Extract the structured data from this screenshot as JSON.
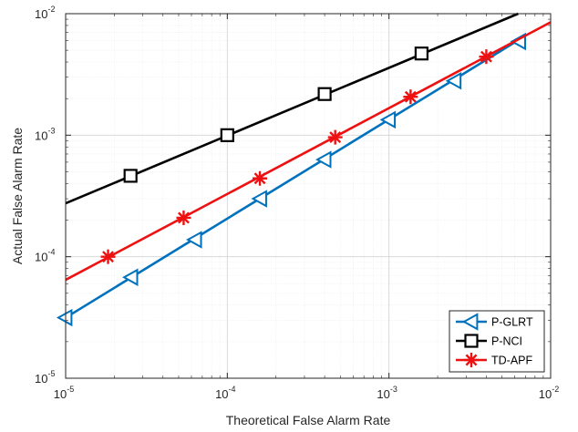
{
  "chart_data": {
    "type": "line",
    "xlabel": "Theoretical False Alarm Rate",
    "ylabel": "Actual False Alarm Rate",
    "xscale": "log",
    "yscale": "log",
    "xlim": [
      1e-05,
      0.01
    ],
    "ylim": [
      1e-05,
      0.01
    ],
    "grid": "major and minor",
    "legend_position": "bottom-right",
    "x_ticks": [
      {
        "base": "10",
        "exp": "-5",
        "value": 1e-05
      },
      {
        "base": "10",
        "exp": "-4",
        "value": 0.0001
      },
      {
        "base": "10",
        "exp": "-3",
        "value": 0.001
      },
      {
        "base": "10",
        "exp": "-2",
        "value": 0.01
      }
    ],
    "y_ticks": [
      {
        "base": "10",
        "exp": "-5",
        "value": 1e-05
      },
      {
        "base": "10",
        "exp": "-4",
        "value": 0.0001
      },
      {
        "base": "10",
        "exp": "-3",
        "value": 0.001
      },
      {
        "base": "10",
        "exp": "-2",
        "value": 0.01
      }
    ],
    "series": [
      {
        "name": "P-GLRT",
        "color": "#0072BD",
        "marker": "triangle-left",
        "line": {
          "x": [
            1e-05,
            0.0065
          ],
          "y": [
            3.15e-05,
            0.0062
          ]
        },
        "markers": {
          "x": [
            1e-05,
            2.55e-05,
            6.33e-05,
            0.00016,
            0.0004,
            0.001,
            0.00255,
            0.0064
          ],
          "y": [
            3.15e-05,
            6.77e-05,
            0.000138,
            0.0003,
            0.00063,
            0.00134,
            0.0028,
            0.0059
          ]
        }
      },
      {
        "name": "P-NCI",
        "color": "#000000",
        "marker": "square",
        "line": {
          "x": [
            1e-05,
            0.0063
          ],
          "y": [
            0.000275,
            0.01
          ]
        },
        "markers": {
          "x": [
            2.52e-05,
            0.0001,
            0.0004,
            0.00159
          ],
          "y": [
            0.000463,
            0.001,
            0.00218,
            0.0047
          ]
        }
      },
      {
        "name": "TD-APF",
        "color": "#EE1111",
        "marker": "asterisk",
        "line": {
          "x": [
            1e-05,
            0.01
          ],
          "y": [
            6.45e-05,
            0.0085
          ]
        },
        "markers": {
          "x": [
            1.83e-05,
            5.37e-05,
            0.000159,
            0.000465,
            0.00136,
            0.004
          ],
          "y": [
            0.0001,
            0.000209,
            0.000441,
            0.000962,
            0.00207,
            0.00443
          ]
        }
      }
    ]
  }
}
